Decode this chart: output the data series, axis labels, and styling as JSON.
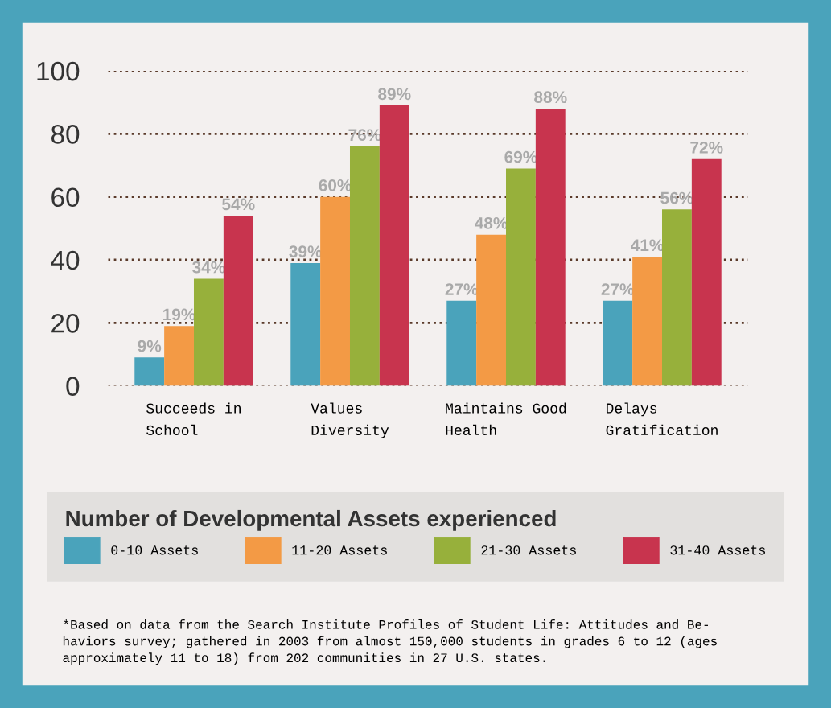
{
  "chart_data": {
    "type": "bar",
    "categories": [
      "Succeeds in\nSchool",
      "Values\nDiversity",
      "Maintains Good\nHealth",
      "Delays\nGratification"
    ],
    "series": [
      {
        "name": "0-10 Assets",
        "color": "#4aa3bb",
        "values": [
          9,
          39,
          27,
          27
        ],
        "value_labels": [
          "9%",
          "39%",
          "27%",
          "27%"
        ]
      },
      {
        "name": "11-20 Assets",
        "color": "#f39a45",
        "values": [
          19,
          60,
          48,
          41
        ],
        "value_labels": [
          "19%",
          "60%",
          "48%",
          "41%"
        ]
      },
      {
        "name": "21-30 Assets",
        "color": "#97b03b",
        "values": [
          34,
          76,
          69,
          56
        ],
        "value_labels": [
          "34%",
          "76%",
          "69%",
          "56%"
        ]
      },
      {
        "name": "31-40 Assets",
        "color": "#c8344e",
        "values": [
          54,
          89,
          88,
          72
        ],
        "value_labels": [
          "54%",
          "89%",
          "88%",
          "72%"
        ]
      }
    ],
    "ylim": [
      0,
      100
    ],
    "yticks": [
      0,
      20,
      40,
      60,
      80,
      100
    ],
    "grid": "y",
    "line_style": "dotted",
    "legend": "bottom",
    "legend_title": "Number of Developmental Assets experienced",
    "annotations": [
      "*Based on data from the Search Institute Profiles of Student Life: Attitudes and Be-\nhaviors survey; gathered in 2003 from almost 150,000 students in grades 6 to 12 (ages\napproximately 11 to 18) from 202 communities in 27 U.S. states."
    ]
  }
}
